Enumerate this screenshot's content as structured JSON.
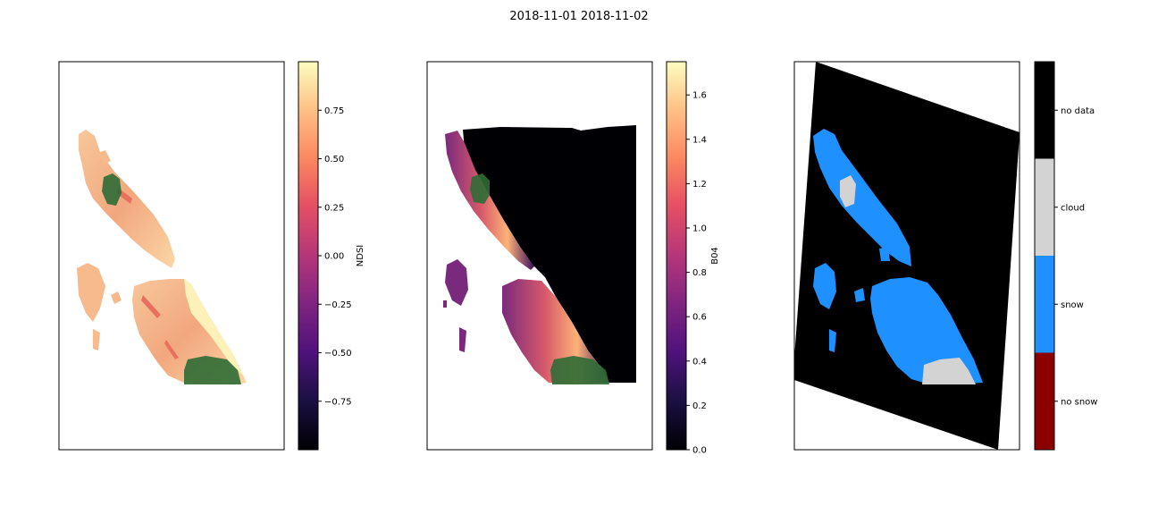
{
  "figure": {
    "suptitle": "2018-11-01 2018-11-02"
  },
  "chart_data": [
    {
      "type": "heatmap",
      "panel": "NDSI map",
      "colormap": "magma",
      "colorbar": {
        "label": "NDSI",
        "range": [
          -1.0,
          1.0
        ],
        "ticks": [
          -0.75,
          -0.5,
          -0.25,
          0.0,
          0.25,
          0.5,
          0.75
        ],
        "tick_labels": [
          "−0.75",
          "−0.50",
          "−0.25",
          "0.00",
          "0.25",
          "0.50",
          "0.75"
        ]
      },
      "axes_ticks_visible": false,
      "overlay": "green glacier/AOI polygons"
    },
    {
      "type": "heatmap",
      "panel": "B04 reflectance map",
      "colormap": "magma",
      "colorbar": {
        "label": "B04",
        "range": [
          0.0,
          1.75
        ],
        "ticks": [
          0.0,
          0.2,
          0.4,
          0.6,
          0.8,
          1.0,
          1.2,
          1.4,
          1.6
        ],
        "tick_labels": [
          "0.0",
          "0.2",
          "0.4",
          "0.6",
          "0.8",
          "1.0",
          "1.2",
          "1.4",
          "1.6"
        ]
      },
      "axes_ticks_visible": false,
      "overlay": "green glacier/AOI polygons"
    },
    {
      "type": "heatmap",
      "panel": "classification map",
      "colorbar": {
        "label": "",
        "categories": [
          "no snow",
          "snow",
          "cloud",
          "no data"
        ],
        "colors": [
          "#8b0000",
          "#1e90ff",
          "#d3d3d3",
          "#000000"
        ]
      },
      "axes_ticks_visible": false
    }
  ]
}
